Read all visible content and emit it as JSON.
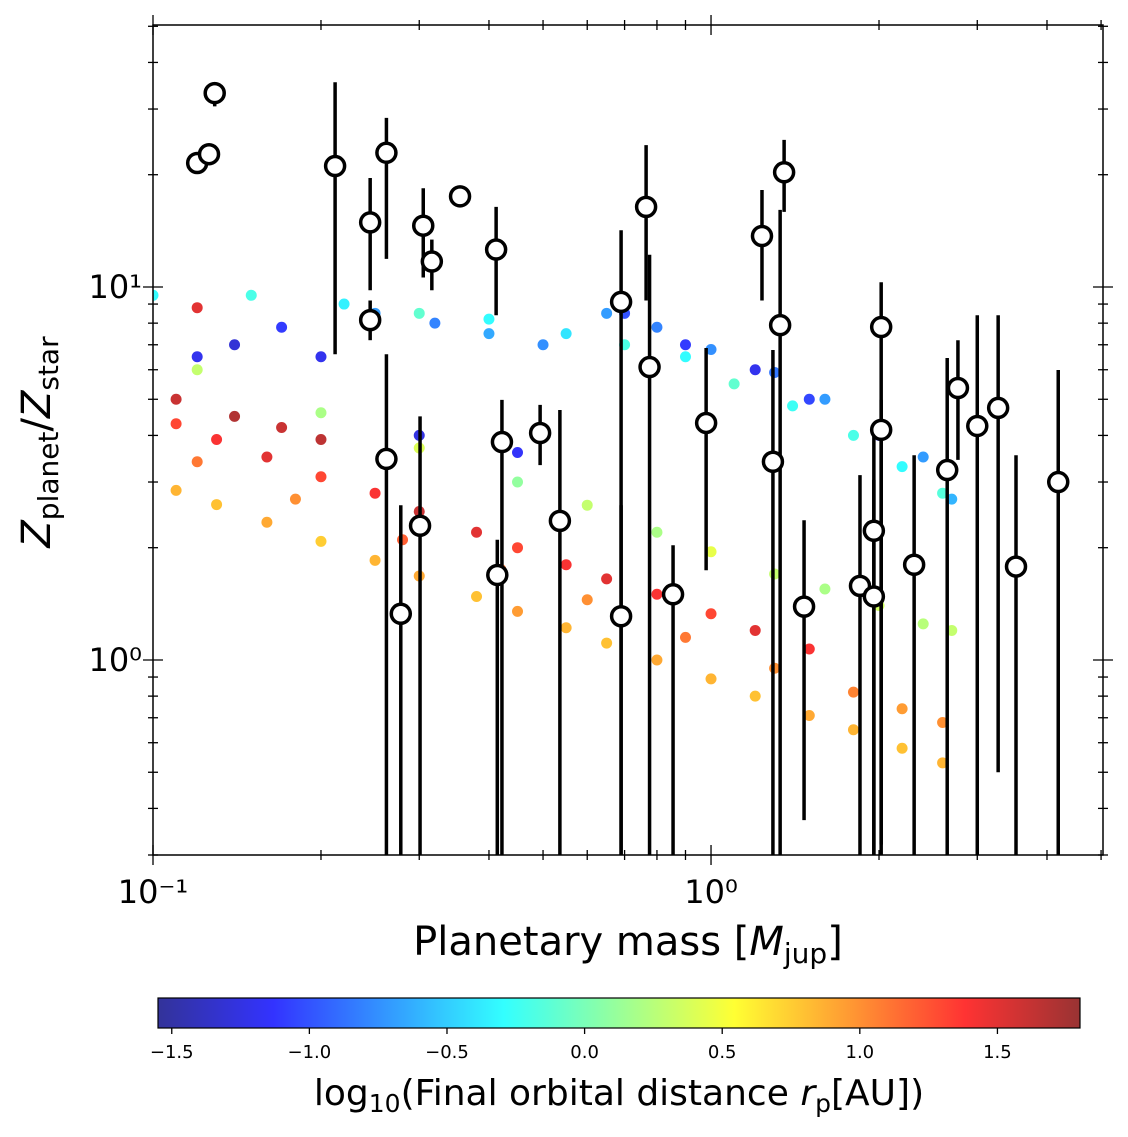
{
  "chart_data": {
    "type": "scatter",
    "xscale": "log",
    "yscale": "log",
    "xlim": [
      0.1,
      5.04
    ],
    "ylim": [
      0.3,
      50.4
    ],
    "xticks": [
      {
        "value": 0.1,
        "label": "10⁻¹"
      },
      {
        "value": 1,
        "label": "10⁰"
      }
    ],
    "yticks": [
      {
        "value": 1,
        "label": "10⁰"
      },
      {
        "value": 10,
        "label": "10¹"
      }
    ],
    "xticks_minor": [
      0.2,
      0.3,
      0.4,
      0.5,
      0.6,
      0.7,
      0.8,
      0.9,
      2,
      3,
      4,
      5
    ],
    "yticks_minor": [
      0.3,
      0.4,
      0.5,
      0.6,
      0.7,
      0.8,
      0.9,
      2,
      3,
      4,
      5,
      6,
      7,
      8,
      9,
      20,
      30,
      40,
      50
    ],
    "xlabel": {
      "text": "Planetary mass [",
      "symbol": "M",
      "subscript": "jup",
      "suffix": "]"
    },
    "ylabel": {
      "symbol": "Z",
      "subscript": "planet",
      "separator": "/",
      "symbol2": "Z",
      "subscript2": "star"
    },
    "simulated": {
      "alpha": 0.8,
      "x": [
        0.11,
        0.13,
        0.16,
        0.2,
        0.25,
        0.3,
        0.38,
        0.45,
        0.55,
        0.65,
        0.8,
        1.0,
        1.2,
        1.5,
        1.8,
        2.2,
        2.6,
        0.11,
        0.13,
        0.16,
        0.2,
        0.25,
        0.3,
        0.38,
        0.45,
        0.55,
        0.65,
        0.8,
        1.0,
        1.2,
        1.5,
        0.12,
        0.18,
        0.28,
        0.42,
        0.6,
        0.9,
        1.3,
        1.8,
        2.2,
        2.6,
        0.12,
        0.2,
        0.3,
        0.45,
        0.6,
        0.8,
        1.0,
        1.3,
        1.6,
        2.0,
        2.4,
        2.7,
        0.1,
        0.15,
        0.22,
        0.3,
        0.4,
        0.55,
        0.7,
        0.9,
        1.1,
        1.4,
        1.8,
        2.2,
        2.6,
        0.25,
        0.32,
        0.4,
        0.5,
        0.65,
        0.8,
        1.0,
        1.3,
        1.6,
        2.0,
        2.4,
        2.7,
        0.12,
        0.14,
        0.17,
        0.2,
        0.3,
        0.45,
        0.7,
        0.9,
        1.2,
        1.5,
        2.0,
        0.11,
        0.12,
        0.14,
        0.17,
        0.2
      ],
      "y": [
        2.85,
        2.61,
        2.34,
        2.08,
        1.85,
        1.68,
        1.48,
        1.35,
        1.22,
        1.11,
        1.0,
        0.89,
        0.8,
        0.71,
        0.65,
        0.58,
        0.53,
        4.3,
        3.9,
        3.5,
        3.1,
        2.8,
        2.5,
        2.2,
        2.0,
        1.8,
        1.65,
        1.5,
        1.33,
        1.2,
        1.07,
        3.4,
        2.7,
        2.1,
        1.75,
        1.45,
        1.15,
        0.95,
        0.82,
        0.74,
        0.68,
        6.0,
        4.6,
        3.7,
        3.0,
        2.6,
        2.2,
        1.95,
        1.7,
        1.55,
        1.4,
        1.25,
        1.2,
        9.5,
        9.5,
        9.0,
        8.5,
        8.2,
        7.5,
        7.0,
        6.5,
        5.5,
        4.8,
        4.0,
        3.3,
        2.8,
        8.5,
        8.0,
        7.5,
        7.0,
        8.5,
        7.8,
        6.8,
        5.9,
        5.0,
        4.2,
        3.5,
        2.7,
        6.5,
        7.0,
        7.8,
        6.5,
        4.0,
        3.6,
        8.5,
        7.0,
        6.0,
        5.0,
        4.0,
        5.0,
        8.8,
        4.5,
        4.2,
        3.9
      ],
      "c": [
        0.85,
        0.8,
        0.9,
        0.75,
        0.85,
        0.9,
        0.8,
        0.95,
        0.85,
        0.8,
        0.9,
        0.85,
        0.8,
        0.9,
        0.85,
        0.8,
        0.85,
        1.3,
        1.4,
        1.5,
        1.3,
        1.4,
        1.6,
        1.5,
        1.3,
        1.4,
        1.5,
        1.4,
        1.3,
        1.5,
        1.4,
        1.1,
        1.0,
        1.2,
        1.1,
        1.0,
        1.1,
        1.0,
        1.05,
        0.95,
        1.0,
        0.3,
        0.2,
        0.4,
        0.1,
        0.3,
        0.2,
        0.45,
        0.3,
        0.2,
        0.35,
        0.25,
        0.3,
        -0.3,
        -0.2,
        -0.35,
        -0.1,
        -0.3,
        -0.4,
        -0.2,
        -0.3,
        -0.1,
        -0.25,
        -0.2,
        -0.3,
        -0.15,
        -0.7,
        -0.8,
        -0.65,
        -0.75,
        -0.7,
        -0.8,
        -0.75,
        -0.85,
        -0.7,
        -0.8,
        -0.7,
        -0.6,
        -1.2,
        -1.3,
        -1.1,
        -1.2,
        -1.25,
        -1.15,
        -1.0,
        -1.1,
        -1.2,
        -1.05,
        -1.1,
        1.6,
        1.5,
        1.7,
        1.6,
        1.65
      ]
    },
    "observed": {
      "marker_color": "#ffffff",
      "edge_color": "#000000",
      "x": [
        0.12,
        0.126,
        0.129,
        0.212,
        0.262,
        0.245,
        0.245,
        0.305,
        0.316,
        0.355,
        0.412,
        0.262,
        0.278,
        0.301,
        0.414,
        0.422,
        0.494,
        0.536,
        0.69,
        0.69,
        0.765,
        0.776,
        0.855,
        0.98,
        1.234,
        1.352,
        1.33,
        1.291,
        1.468,
        1.849,
        1.958,
        1.958,
        2.018,
        2.018,
        2.312,
        2.65,
        2.77,
        3.0,
        3.27,
        3.52,
        4.19
      ],
      "y": [
        21.5,
        22.7,
        33.1,
        21.1,
        22.9,
        14.9,
        8.15,
        14.6,
        11.7,
        17.5,
        12.6,
        3.46,
        1.33,
        2.29,
        1.69,
        3.84,
        4.06,
        2.36,
        9.12,
        1.31,
        16.4,
        6.1,
        1.5,
        4.32,
        13.7,
        20.3,
        7.9,
        3.4,
        1.39,
        1.58,
        2.22,
        1.48,
        7.81,
        4.14,
        1.8,
        3.23,
        5.36,
        4.24,
        4.74,
        1.78,
        3.0
      ],
      "y_lower": [
        null,
        null,
        30.5,
        6.6,
        11.9,
        9.8,
        7.2,
        10.6,
        9.8,
        null,
        8.4,
        0.25,
        0.25,
        0.25,
        0.25,
        0.25,
        3.33,
        0.25,
        0.25,
        0.25,
        9.2,
        0.25,
        0.25,
        1.74,
        9.2,
        15.9,
        0.25,
        0.25,
        0.372,
        0.25,
        0.25,
        0.25,
        0.25,
        0.32,
        0.25,
        0.25,
        3.44,
        0.25,
        0.5,
        0.25,
        0.25
      ],
      "y_upper": [
        null,
        null,
        35.2,
        35.4,
        28.4,
        19.6,
        9.2,
        18.4,
        13.4,
        null,
        16.4,
        6.6,
        2.6,
        4.5,
        2.1,
        4.98,
        4.83,
        4.68,
        14.2,
        2.6,
        24.0,
        12.2,
        2.03,
        6.86,
        18.2,
        24.8,
        16.1,
        6.78,
        2.37,
        3.13,
        4.14,
        3.04,
        10.3,
        4.98,
        3.54,
        6.45,
        7.2,
        8.4,
        8.4,
        3.54,
        5.99
      ]
    },
    "colorbar": {
      "cmap": "jet",
      "lim": [
        -1.55,
        1.8
      ],
      "ticks": [
        {
          "value": -1.5,
          "label": "−1.5"
        },
        {
          "value": -1.0,
          "label": "−1.0"
        },
        {
          "value": -0.5,
          "label": "−0.5"
        },
        {
          "value": 0,
          "label": "0.0"
        },
        0.5,
        {
          "value": 1.0,
          "label": "1.0"
        },
        1.5
      ],
      "label": {
        "prefix": "log",
        "prefix_sub": "10",
        "text": "(Final orbital distance ",
        "symbol": "r",
        "subscript": "p",
        "suffix": "[AU])"
      }
    }
  }
}
